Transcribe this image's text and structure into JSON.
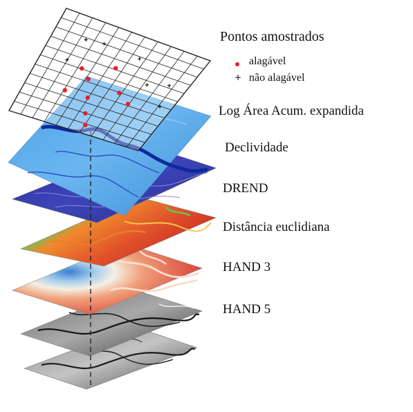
{
  "diagram": {
    "title": "Pontos amostrados",
    "legend": [
      {
        "label": "alagável",
        "symbol": "dot",
        "color": "#e8202a"
      },
      {
        "label": "não alagável",
        "symbol": "plus",
        "color": "#111111"
      }
    ],
    "layers": [
      {
        "label": "Log Área Acum. expandida",
        "style": "blue-flow"
      },
      {
        "label": "Declividade",
        "style": "indigo-slope"
      },
      {
        "label": "DREND",
        "style": "spectral-drainage"
      },
      {
        "label": "Distância euclidiana",
        "style": "red-blue-distance"
      },
      {
        "label": "HAND 3",
        "style": "grayscale"
      },
      {
        "label": "HAND 5",
        "style": "grayscale"
      }
    ],
    "colors": {
      "flooded": "#e8202a",
      "not_flooded": "#111111",
      "grid": "#222222",
      "sample_line": "#222222"
    }
  }
}
